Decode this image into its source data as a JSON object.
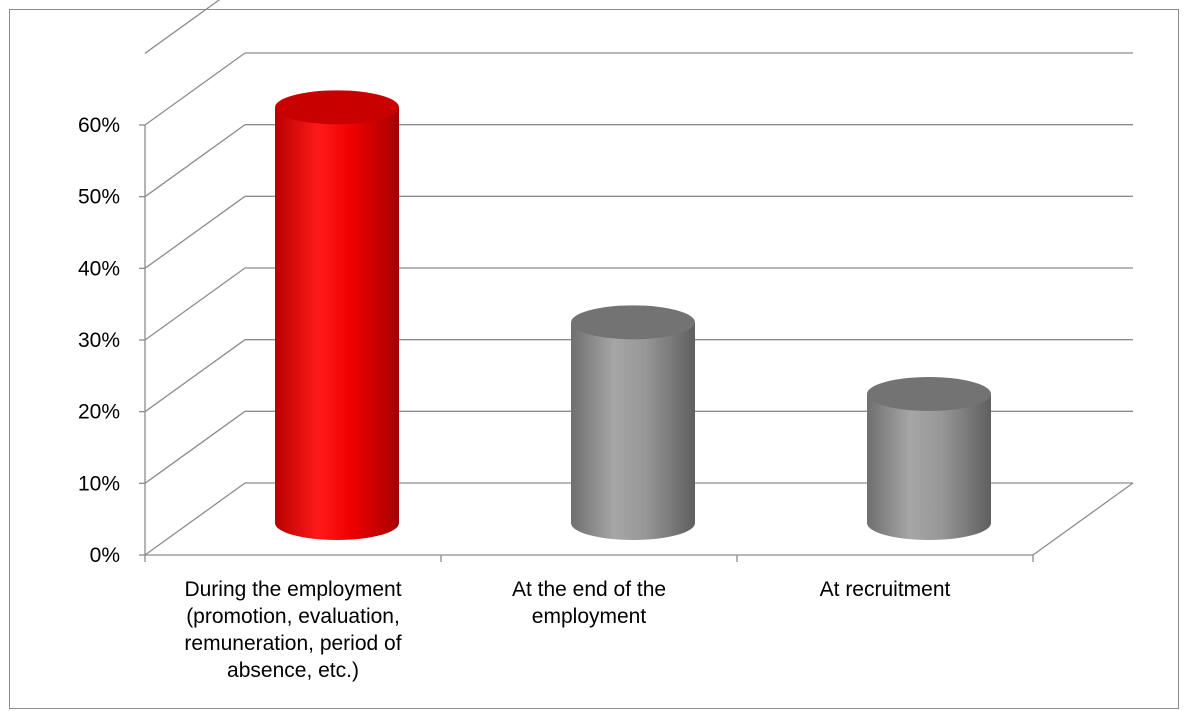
{
  "chart_data": {
    "type": "bar",
    "style": "3d-cylinder",
    "categories": [
      [
        "During the employment",
        "(promotion, evaluation,",
        "remuneration, period of",
        "absence, etc.)"
      ],
      [
        "At the end of the",
        "employment"
      ],
      [
        "At recruitment"
      ]
    ],
    "values": [
      0.58,
      0.28,
      0.18
    ],
    "ylim": [
      0,
      0.6
    ],
    "yticks": [
      "0%",
      "10%",
      "20%",
      "30%",
      "40%",
      "50%",
      "60%"
    ],
    "grid": true,
    "legend": "none",
    "colors": {
      "highlight": "#e00000",
      "default": "#8e8e8e",
      "grid": "#8c8c8c"
    }
  }
}
